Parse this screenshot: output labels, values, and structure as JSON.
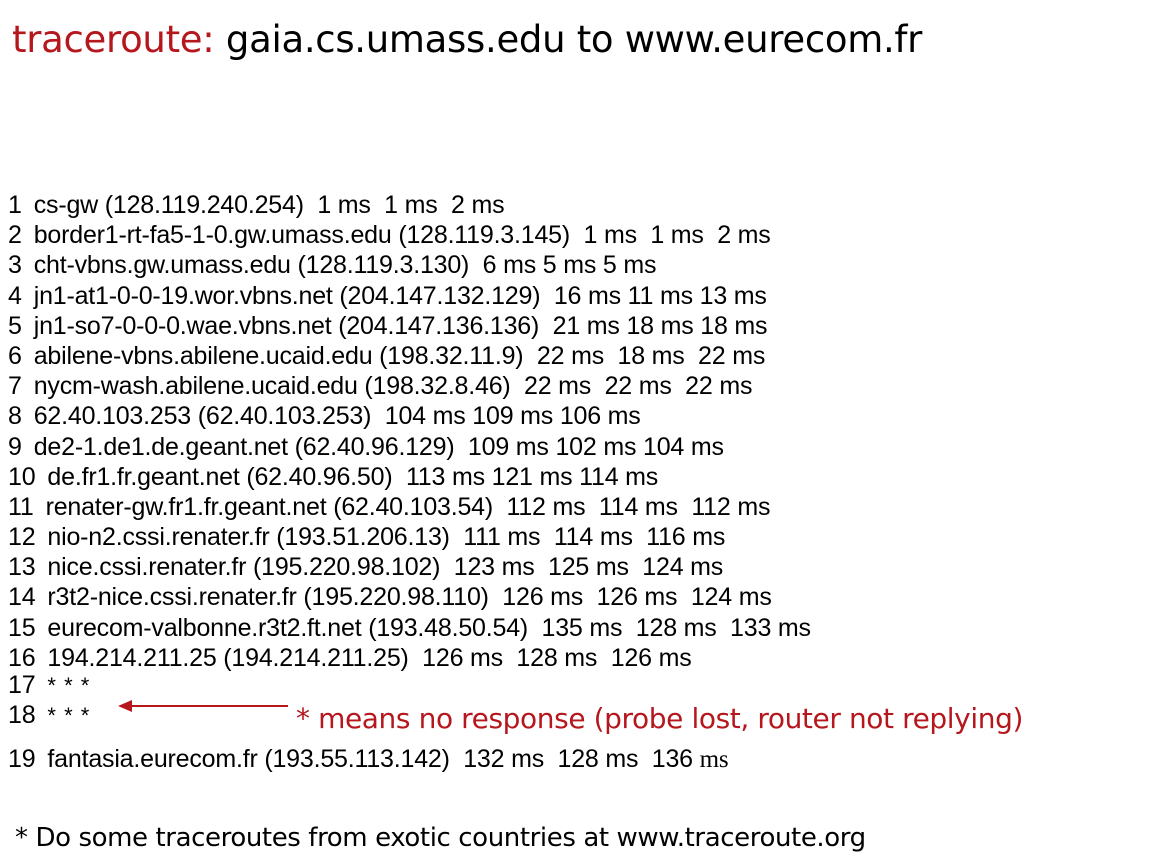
{
  "title": {
    "keyword": "traceroute:",
    "rest": "gaia.cs.umass.edu to www.eurecom.fr"
  },
  "trace": {
    "hops": [
      {
        "num": "1",
        "text": "cs-gw (128.119.240.254)  1 ms  1 ms  2 ms"
      },
      {
        "num": "2",
        "text": "border1-rt-fa5-1-0.gw.umass.edu (128.119.3.145)  1 ms  1 ms  2 ms"
      },
      {
        "num": "3",
        "text": "cht-vbns.gw.umass.edu (128.119.3.130)  6 ms 5 ms 5 ms"
      },
      {
        "num": "4",
        "text": "jn1-at1-0-0-19.wor.vbns.net (204.147.132.129)  16 ms 11 ms 13 ms"
      },
      {
        "num": "5",
        "text": "jn1-so7-0-0-0.wae.vbns.net (204.147.136.136)  21 ms 18 ms 18 ms"
      },
      {
        "num": "6",
        "text": "abilene-vbns.abilene.ucaid.edu (198.32.11.9)  22 ms  18 ms  22 ms"
      },
      {
        "num": "7",
        "text": "nycm-wash.abilene.ucaid.edu (198.32.8.46)  22 ms  22 ms  22 ms"
      },
      {
        "num": "8",
        "text": "62.40.103.253 (62.40.103.253)  104 ms 109 ms 106 ms"
      },
      {
        "num": "9",
        "text": "de2-1.de1.de.geant.net (62.40.96.129)  109 ms 102 ms 104 ms"
      },
      {
        "num": "10",
        "text": "de.fr1.fr.geant.net (62.40.96.50)  113 ms 121 ms 114 ms"
      },
      {
        "num": "11",
        "text": "renater-gw.fr1.fr.geant.net (62.40.103.54)  112 ms  114 ms  112 ms"
      },
      {
        "num": "12",
        "text": "nio-n2.cssi.renater.fr (193.51.206.13)  111 ms  114 ms  116 ms"
      },
      {
        "num": "13",
        "text": "nice.cssi.renater.fr (195.220.98.102)  123 ms  125 ms  124 ms"
      },
      {
        "num": "14",
        "text": "r3t2-nice.cssi.renater.fr (195.220.98.110)  126 ms  126 ms  124 ms"
      },
      {
        "num": "15",
        "text": "eurecom-valbonne.r3t2.ft.net (193.48.50.54)  135 ms  128 ms  133 ms"
      },
      {
        "num": "16",
        "text": "194.214.211.25 (194.214.211.25)  126 ms  128 ms  126 ms"
      },
      {
        "num": "17",
        "text": "* * *"
      },
      {
        "num": "18",
        "text": "* * *"
      }
    ],
    "last_hop": {
      "num": "19",
      "text": "fantasia.eurecom.fr (193.55.113.142)  132 ms  128 ms  136 ",
      "tail": "ms"
    }
  },
  "annotation": "* means no response (probe lost, router not replying)",
  "footnote": "* Do some traceroutes from exotic countries at www.traceroute.org",
  "colors": {
    "accent": "#b5171d",
    "text": "#000000",
    "background": "#ffffff"
  }
}
